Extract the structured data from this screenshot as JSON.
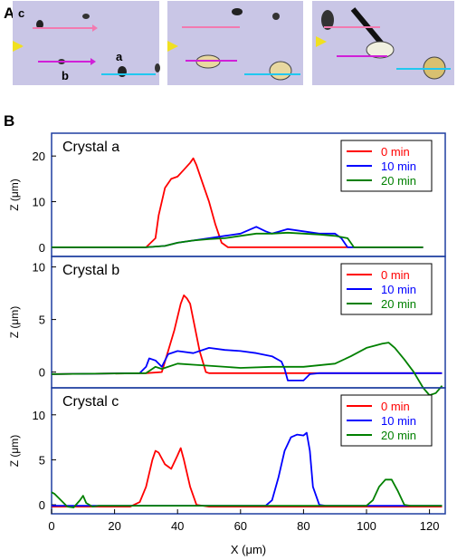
{
  "panel_labels": {
    "a": "A",
    "b": "B"
  },
  "micrographs": {
    "image_labels": [
      "c",
      "b",
      "a"
    ],
    "colors": {
      "background": "#c9c6e6",
      "pink": "#f27ab0",
      "magenta": "#d020d8",
      "cyan": "#20c8f0",
      "yellow": "#f0e020"
    }
  },
  "chart_data": [
    {
      "type": "line",
      "title": "Crystal a",
      "xlim": [
        0,
        125
      ],
      "ylim": [
        -2,
        25
      ],
      "yticks": [
        0,
        10,
        20
      ],
      "ylabel": "Z (μm)",
      "legend_placement": "top-right",
      "series": [
        {
          "name": "0 min",
          "color": "#ff0000",
          "x": [
            0,
            30,
            33,
            34,
            36,
            38,
            40,
            42,
            44,
            45,
            46,
            48,
            50,
            52,
            54,
            56,
            60,
            80,
            100,
            118
          ],
          "y": [
            0,
            0,
            2,
            7,
            13,
            15,
            15.5,
            17,
            18.5,
            19.5,
            18,
            14,
            10,
            5,
            1,
            0,
            0,
            0,
            0,
            0
          ]
        },
        {
          "name": "10 min",
          "color": "#0000ff",
          "x": [
            0,
            30,
            36,
            40,
            45,
            50,
            55,
            60,
            65,
            68,
            70,
            75,
            80,
            85,
            90,
            92,
            94,
            100,
            118
          ],
          "y": [
            0,
            0,
            0.3,
            1,
            1.5,
            2,
            2.5,
            3,
            4.5,
            3.5,
            3,
            4,
            3.5,
            3,
            3,
            2,
            0,
            0,
            0
          ]
        },
        {
          "name": "20 min",
          "color": "#008000",
          "x": [
            0,
            30,
            36,
            40,
            45,
            50,
            55,
            60,
            65,
            70,
            75,
            80,
            85,
            90,
            94,
            96,
            100,
            118
          ],
          "y": [
            0,
            0,
            0.3,
            1,
            1.5,
            1.8,
            2,
            2.5,
            3,
            3,
            3.2,
            3,
            2.8,
            2.5,
            2,
            0,
            0,
            0
          ]
        }
      ]
    },
    {
      "type": "line",
      "title": "Crystal b",
      "xlim": [
        0,
        125
      ],
      "ylim": [
        -1.5,
        11
      ],
      "yticks": [
        0,
        5,
        10
      ],
      "ylabel": "Z (μm)",
      "legend_placement": "top-right",
      "series": [
        {
          "name": "0 min",
          "color": "#ff0000",
          "x": [
            0,
            30,
            35,
            37,
            39,
            41,
            42,
            43,
            44,
            45,
            47,
            49,
            50,
            52,
            60,
            100,
            124
          ],
          "y": [
            -0.2,
            -0.1,
            0,
            2,
            4,
            6.5,
            7.3,
            7,
            6.5,
            5,
            2,
            0,
            -0.1,
            -0.1,
            -0.1,
            -0.1,
            -0.1
          ]
        },
        {
          "name": "10 min",
          "color": "#0000ff",
          "x": [
            0,
            28,
            30,
            31,
            33,
            35,
            37,
            40,
            45,
            50,
            55,
            60,
            65,
            70,
            73,
            74,
            75,
            77,
            80,
            82,
            85,
            100,
            124
          ],
          "y": [
            -0.2,
            -0.1,
            0.5,
            1.3,
            1.1,
            0.5,
            1.7,
            2,
            1.8,
            2.3,
            2.1,
            2,
            1.8,
            1.5,
            1,
            0.3,
            -0.8,
            -0.8,
            -0.8,
            -0.2,
            -0.1,
            -0.1,
            -0.1
          ]
        },
        {
          "name": "20 min",
          "color": "#008000",
          "x": [
            0,
            30,
            33,
            35,
            40,
            45,
            50,
            60,
            70,
            80,
            90,
            95,
            100,
            105,
            107,
            109,
            112,
            115,
            118,
            120,
            122,
            124
          ],
          "y": [
            -0.2,
            -0.1,
            0.5,
            0.3,
            0.8,
            0.7,
            0.6,
            0.4,
            0.5,
            0.5,
            0.8,
            1.5,
            2.3,
            2.7,
            2.8,
            2.3,
            1.2,
            0,
            -1.5,
            -2.2,
            -2,
            -1.3
          ]
        }
      ]
    },
    {
      "type": "line",
      "title": "Crystal c",
      "xlim": [
        0,
        125
      ],
      "ylim": [
        -1,
        13
      ],
      "yticks": [
        0,
        5,
        10
      ],
      "ylabel": "Z (μm)",
      "xlabel": "X (μm)",
      "xticks": [
        0,
        20,
        40,
        60,
        80,
        100,
        120
      ],
      "legend_placement": "top-right",
      "series": [
        {
          "name": "0 min",
          "color": "#ff0000",
          "x": [
            0,
            25,
            28,
            30,
            32,
            33,
            34,
            36,
            38,
            40,
            41,
            42,
            44,
            46,
            48,
            50,
            55,
            124
          ],
          "y": [
            -0.2,
            -0.2,
            0.3,
            2,
            5,
            6,
            5.8,
            4.5,
            4,
            5.5,
            6.3,
            5,
            2,
            0,
            -0.1,
            -0.2,
            -0.2,
            -0.2
          ]
        },
        {
          "name": "10 min",
          "color": "#0000ff",
          "x": [
            0,
            68,
            70,
            72,
            74,
            76,
            78,
            80,
            81,
            82,
            83,
            85,
            87,
            90,
            124
          ],
          "y": [
            -0.1,
            -0.1,
            0.5,
            3,
            6,
            7.5,
            7.8,
            7.7,
            8,
            6,
            2,
            0,
            -0.1,
            -0.1,
            -0.1
          ]
        },
        {
          "name": "20 min",
          "color": "#008000",
          "x": [
            0,
            1,
            3,
            5,
            7,
            9,
            10,
            11,
            13,
            15,
            20,
            40,
            60,
            100,
            102,
            104,
            106,
            108,
            110,
            112,
            114,
            124
          ],
          "y": [
            1.4,
            1.2,
            0.5,
            -0.2,
            -0.3,
            0.5,
            1,
            0.2,
            -0.2,
            -0.1,
            -0.1,
            -0.1,
            -0.1,
            -0.1,
            0.5,
            2,
            2.8,
            2.8,
            1.5,
            0,
            -0.1,
            -0.1
          ]
        }
      ]
    }
  ]
}
